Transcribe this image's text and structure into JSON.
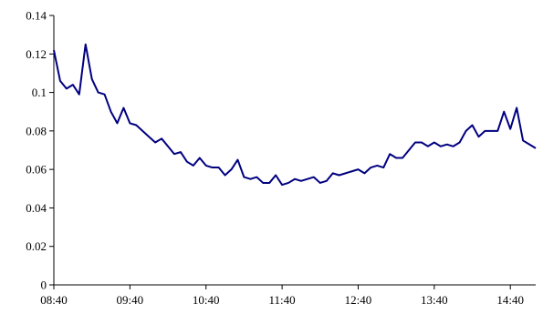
{
  "chart_data": {
    "type": "line",
    "title": "",
    "xlabel": "",
    "ylabel": "",
    "ylim": [
      0,
      0.14
    ],
    "y_ticks": [
      0,
      0.02,
      0.04,
      0.06,
      0.08,
      0.1,
      0.12,
      0.14
    ],
    "y_tick_labels": [
      "0",
      "0.02",
      "0.04",
      "0.06",
      "0.08",
      "0.1",
      "0.12",
      "0.14"
    ],
    "x_tick_labels": [
      "08:40",
      "09:40",
      "10:40",
      "11:40",
      "12:40",
      "13:40",
      "14:40"
    ],
    "x_interval_minutes": 5,
    "grid": false,
    "legend": "none",
    "line_color": "#000080",
    "series": [
      {
        "values": [
          0.122,
          0.106,
          0.102,
          0.104,
          0.099,
          0.125,
          0.107,
          0.1,
          0.099,
          0.09,
          0.084,
          0.092,
          0.084,
          0.083,
          0.08,
          0.077,
          0.074,
          0.076,
          0.072,
          0.068,
          0.069,
          0.064,
          0.062,
          0.066,
          0.062,
          0.061,
          0.061,
          0.057,
          0.06,
          0.065,
          0.056,
          0.055,
          0.056,
          0.053,
          0.053,
          0.057,
          0.052,
          0.053,
          0.055,
          0.054,
          0.055,
          0.056,
          0.053,
          0.054,
          0.058,
          0.057,
          0.058,
          0.059,
          0.06,
          0.058,
          0.061,
          0.062,
          0.061,
          0.068,
          0.066,
          0.066,
          0.07,
          0.074,
          0.074,
          0.072,
          0.074,
          0.072,
          0.073,
          0.072,
          0.074,
          0.08,
          0.083,
          0.077,
          0.08,
          0.08,
          0.08,
          0.09,
          0.081,
          0.092,
          0.075,
          0.073,
          0.071
        ]
      }
    ]
  }
}
